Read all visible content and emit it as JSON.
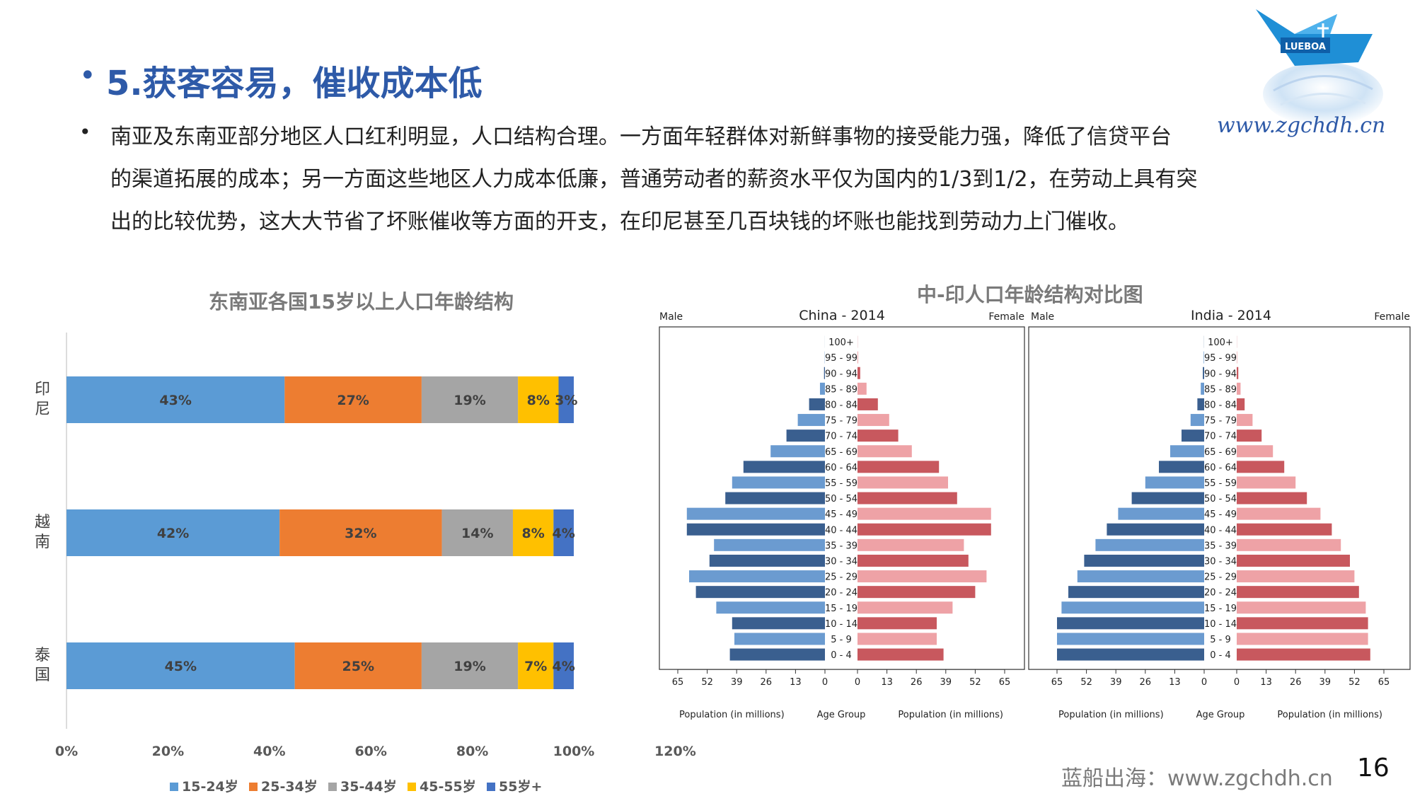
{
  "slide": {
    "bullet": "•",
    "title": "5.获客容易，催收成本低",
    "body_bullet": "•",
    "body_lines": [
      "南亚及东南亚部分地区人口红利明显，人口结构合理。一方面年轻群体对新鲜事物的接受能力强，降低了信贷平台",
      "的渠道拓展的成本；另一方面这些地区人力成本低廉，普通劳动者的薪资水平仅为国内的1/3到1/2，在劳动上具有突",
      "出的比较优势，这大大节省了坏账催收等方面的开支，在印尼甚至几百块钱的坏账也能找到劳动力上门催收。"
    ],
    "logo_text": "LUEBOA",
    "watermark": "www.zgchdh.cn",
    "footer": "蓝船出海：www.zgchdh.cn",
    "page_number": "16"
  },
  "colors": {
    "title": "#2e5aa8",
    "s1": "#5b9bd5",
    "s2": "#ed7d31",
    "s3": "#a5a5a5",
    "s4": "#ffc000",
    "s5": "#4472c4",
    "male": "#3a5f8f",
    "male_light": "#6b9bd0",
    "female": "#c8585e",
    "female_light": "#eea2a6"
  },
  "chart_data": [
    {
      "type": "bar",
      "orientation": "horizontal-stacked",
      "title": "东南亚各国15岁以上人口年龄结构",
      "categories": [
        "印尼",
        "越南",
        "泰国"
      ],
      "series": [
        {
          "name": "15-24岁",
          "values": [
            43,
            42,
            45
          ],
          "labels": [
            "43%",
            "42%",
            "45%"
          ]
        },
        {
          "name": "25-34岁",
          "values": [
            27,
            32,
            25
          ],
          "labels": [
            "27%",
            "32%",
            "25%"
          ]
        },
        {
          "name": "35-44岁",
          "values": [
            19,
            14,
            19
          ],
          "labels": [
            "19%",
            "14%",
            "19%"
          ]
        },
        {
          "name": "45-55岁",
          "values": [
            8,
            8,
            7
          ],
          "labels": [
            "8%",
            "8%",
            "7%"
          ]
        },
        {
          "name": "55岁+",
          "values": [
            3,
            4,
            4
          ],
          "labels": [
            "3%",
            "4%",
            "4%"
          ]
        }
      ],
      "xlim": [
        0,
        120
      ],
      "xticks": [
        "0%",
        "20%",
        "40%",
        "60%",
        "80%",
        "100%",
        "120%"
      ],
      "legend": "bottom"
    },
    {
      "type": "bar",
      "orientation": "population-pyramid",
      "title": "中-印人口年龄结构对比图",
      "age_groups": [
        "100+",
        "95 - 99",
        "90 - 94",
        "85 - 89",
        "80 - 84",
        "75 - 79",
        "70 - 74",
        "65 - 69",
        "60 - 64",
        "55 - 59",
        "50 - 54",
        "45 - 49",
        "40 - 44",
        "35 - 39",
        "30 - 34",
        "25 - 29",
        "20 - 24",
        "15 - 19",
        "10 - 14",
        "5 - 9",
        "0 - 4"
      ],
      "axis_ticks": [
        "65",
        "52",
        "39",
        "26",
        "13",
        "0"
      ],
      "axis_ticks_right": [
        "0",
        "13",
        "26",
        "39",
        "52",
        "65"
      ],
      "xlim": [
        0,
        65
      ],
      "male_label": "Male",
      "female_label": "Female",
      "left_axis_label": "Population (in millions)",
      "center_axis_label": "Age Group",
      "right_axis_label": "Population (in millions)",
      "panels": [
        {
          "title": "China - 2014",
          "male": [
            0.02,
            0.1,
            0.4,
            2.2,
            7,
            12,
            17,
            24,
            36,
            41,
            44,
            61,
            61,
            49,
            51,
            60,
            57,
            48,
            41,
            40,
            42
          ],
          "female": [
            0.05,
            0.3,
            1.2,
            4,
            9,
            14,
            18,
            24,
            36,
            40,
            44,
            59,
            59,
            47,
            49,
            57,
            52,
            42,
            35,
            35,
            38
          ]
        },
        {
          "title": "India - 2014",
          "male": [
            0.05,
            0.2,
            0.6,
            1.5,
            3,
            6,
            10,
            15,
            20,
            26,
            32,
            38,
            43,
            48,
            53,
            56,
            60,
            63,
            65,
            65,
            65
          ],
          "female": [
            0.05,
            0.2,
            0.7,
            1.7,
            3.5,
            7,
            11,
            16,
            21,
            26,
            31,
            37,
            42,
            46,
            50,
            52,
            54,
            57,
            58,
            58,
            59
          ]
        }
      ]
    }
  ]
}
